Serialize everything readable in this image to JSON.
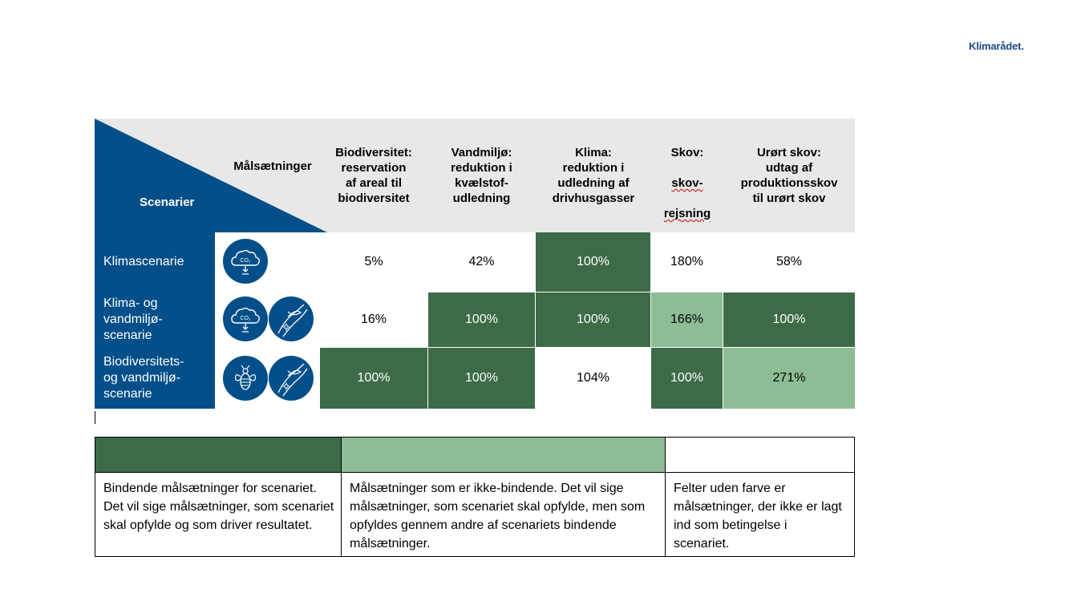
{
  "brand": "Klimarådet.",
  "header": {
    "corner_scenarios": "Scenarier",
    "corner_targets": "Målsætninger",
    "columns": [
      {
        "label": "Biodiversitet:\nreservation\naf areal til\nbiodiversitet"
      },
      {
        "label": "Vandmiljø:\nreduktion i\nkvælstof-\nudledning"
      },
      {
        "label": "Klima:\nreduktion i\nudledning af\ndrivhusgasser"
      },
      {
        "label_line1": "Skov:",
        "label_line2": "skov-",
        "label_line3": "rejsning"
      },
      {
        "label": "Urørt skov:\nudtag af\nproduktionsskov\ntil urørt skov"
      }
    ]
  },
  "rows": [
    {
      "name": "Klimascenarie",
      "icons": [
        "co2-cloud-icon"
      ],
      "cells": [
        {
          "value": "5%",
          "status": "none"
        },
        {
          "value": "42%",
          "status": "none"
        },
        {
          "value": "100%",
          "status": "binding"
        },
        {
          "value": "180%",
          "status": "none"
        },
        {
          "value": "58%",
          "status": "none"
        }
      ]
    },
    {
      "name": "Klima- og\nvandmiljø-\nscenarie",
      "icons": [
        "co2-cloud-icon",
        "fish-water-icon"
      ],
      "cells": [
        {
          "value": "16%",
          "status": "none"
        },
        {
          "value": "100%",
          "status": "binding"
        },
        {
          "value": "100%",
          "status": "binding"
        },
        {
          "value": "166%",
          "status": "non-binding"
        },
        {
          "value": "100%",
          "status": "binding"
        }
      ]
    },
    {
      "name": "Biodiversitets-\nog vandmiljø-\nscenarie",
      "icons": [
        "bee-icon",
        "fish-water-icon"
      ],
      "cells": [
        {
          "value": "100%",
          "status": "binding"
        },
        {
          "value": "100%",
          "status": "binding"
        },
        {
          "value": "104%",
          "status": "none"
        },
        {
          "value": "100%",
          "status": "binding"
        },
        {
          "value": "271%",
          "status": "non-binding"
        }
      ]
    }
  ],
  "colors": {
    "binding": "#3d6b48",
    "non_binding": "#8cbd94",
    "none": "#ffffff",
    "scenario_blue": "#044f89",
    "header_grey": "#e7e8e9"
  },
  "legend": [
    {
      "status": "binding",
      "text": "Bindende målsætninger for scenariet. Det vil sige målsætninger, som scenariet skal opfylde og som driver resultatet."
    },
    {
      "status": "non-binding",
      "text": "Målsætninger som er ikke-bindende. Det vil sige målsætninger, som scenariet skal opfylde, men som opfyldes gennem andre af scenariets bindende målsætninger."
    },
    {
      "status": "none",
      "text": "Felter uden farve er målsætninger, der ikke er lagt ind som betingelse i scenariet."
    }
  ]
}
